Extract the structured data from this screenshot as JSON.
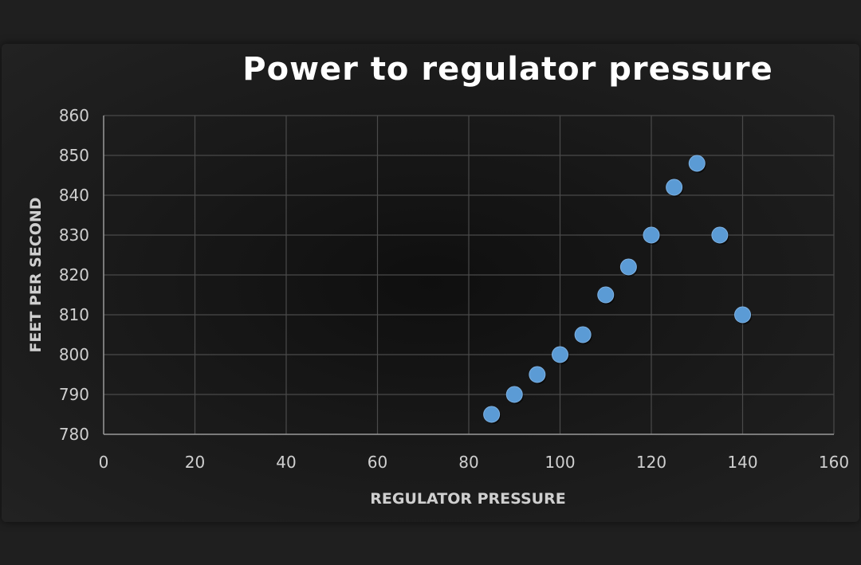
{
  "chart_data": {
    "type": "scatter",
    "title": "Power to regulator pressure",
    "xlabel": "REGULATOR PRESSURE",
    "ylabel": "FEET PER SECOND",
    "xlim": [
      0,
      160
    ],
    "ylim": [
      780,
      860
    ],
    "xticks": [
      0,
      20,
      40,
      60,
      80,
      100,
      120,
      140,
      160
    ],
    "yticks": [
      780,
      790,
      800,
      810,
      820,
      830,
      840,
      850,
      860
    ],
    "grid": true,
    "legend": "none",
    "series": [
      {
        "points": [
          {
            "x": 85,
            "y": 785
          },
          {
            "x": 90,
            "y": 790
          },
          {
            "x": 95,
            "y": 795
          },
          {
            "x": 100,
            "y": 800
          },
          {
            "x": 105,
            "y": 805
          },
          {
            "x": 110,
            "y": 815
          },
          {
            "x": 115,
            "y": 822
          },
          {
            "x": 120,
            "y": 830
          },
          {
            "x": 125,
            "y": 842
          },
          {
            "x": 130,
            "y": 848
          },
          {
            "x": 135,
            "y": 830
          },
          {
            "x": 140,
            "y": 810
          }
        ],
        "color": "#5b9bd5"
      }
    ],
    "colors": {
      "background": "#1a1a1a",
      "grid": "#4a4a4a",
      "axis": "#9a9a9a",
      "text": "#cfcfcf",
      "title": "#ffffff"
    }
  }
}
